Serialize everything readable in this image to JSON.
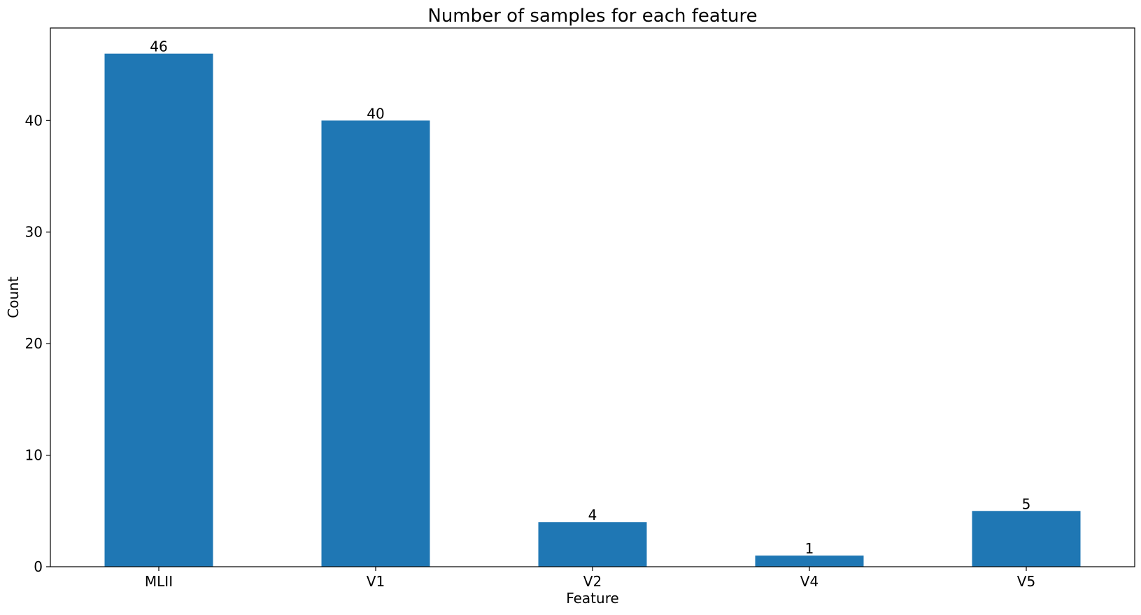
{
  "chart_data": {
    "type": "bar",
    "title": "Number of samples for each feature",
    "xlabel": "Feature",
    "ylabel": "Count",
    "categories": [
      "MLII",
      "V1",
      "V2",
      "V4",
      "V5"
    ],
    "values": [
      46,
      40,
      4,
      1,
      5
    ],
    "data_labels": [
      "46",
      "40",
      "4",
      "1",
      "5"
    ],
    "ylim": [
      0,
      48.3
    ],
    "yticks": [
      0,
      10,
      20,
      30,
      40
    ],
    "ytick_labels": [
      "0",
      "10",
      "20",
      "30",
      "40"
    ],
    "bar_color": "#1f77b4",
    "grid": false,
    "legend": "none"
  }
}
